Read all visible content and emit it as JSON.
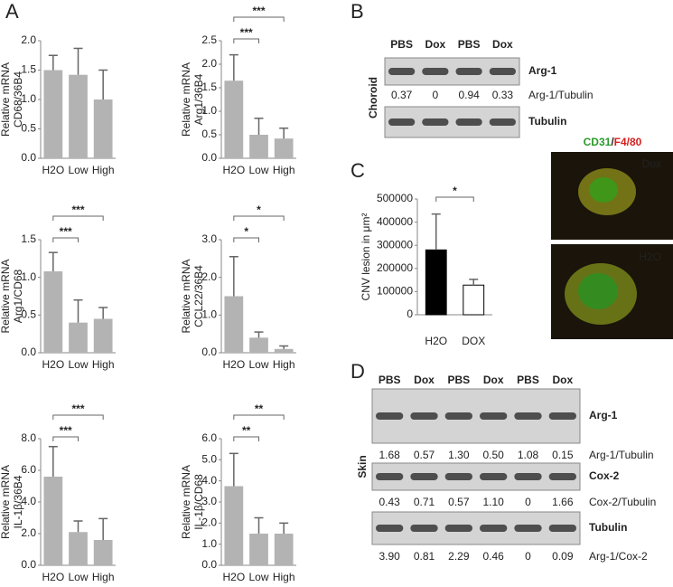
{
  "panel_labels": [
    "A",
    "B",
    "C",
    "D"
  ],
  "chart_data": [
    {
      "type": "bar",
      "ylabel": [
        "Relative mRNA",
        "CD68/36B4"
      ],
      "categories": [
        "H2O",
        "Low",
        "High"
      ],
      "values": [
        1.5,
        1.42,
        1.0
      ],
      "errors": [
        0.25,
        0.45,
        0.5
      ],
      "color": "#b3b3b3",
      "ylim": [
        0,
        2
      ],
      "yticks": [
        {
          "value": 0,
          "label": "0.0"
        },
        {
          "value": 0.5,
          "label": "0.5"
        },
        {
          "value": 1,
          "label": "1.0"
        },
        {
          "value": 1.5,
          "label": "1.5"
        },
        {
          "value": 2,
          "label": "2.0"
        }
      ],
      "annotations": []
    },
    {
      "type": "bar",
      "ylabel": [
        "Relative mRNA",
        "Arg1/36B4"
      ],
      "categories": [
        "H2O",
        "Low",
        "High"
      ],
      "values": [
        1.65,
        0.5,
        0.42
      ],
      "errors": [
        0.55,
        0.35,
        0.22
      ],
      "color": "#b3b3b3",
      "ylim": [
        0,
        2.5
      ],
      "yticks": [
        {
          "value": 0,
          "label": "0.0"
        },
        0.5,
        {
          "value": 1,
          "label": "1.0"
        },
        1.5,
        {
          "value": 2,
          "label": "2.0"
        },
        2.5
      ],
      "annotations": [
        "***",
        "***"
      ]
    },
    {
      "type": "bar",
      "ylabel": [
        "Relative mRNA",
        "Arg1/CD68"
      ],
      "categories": [
        "H2O",
        "Low",
        "High"
      ],
      "values": [
        1.08,
        0.4,
        0.45
      ],
      "errors": [
        0.25,
        0.3,
        0.15
      ],
      "color": "#b3b3b3",
      "ylim": [
        0,
        1.5
      ],
      "yticks": [
        {
          "value": 0,
          "label": "0.0"
        },
        0.5,
        {
          "value": 1,
          "label": "1.0"
        },
        1.5
      ],
      "annotations": [
        "***",
        "***"
      ]
    },
    {
      "type": "bar",
      "ylabel": [
        "Relative mRNA",
        "CCL22/36B4"
      ],
      "categories": [
        "H2O",
        "Low",
        "High"
      ],
      "values": [
        1.5,
        0.4,
        0.1
      ],
      "errors": [
        1.05,
        0.15,
        0.08
      ],
      "color": "#b3b3b3",
      "ylim": [
        0,
        3
      ],
      "yticks": [
        {
          "value": 0,
          "label": "0.0"
        },
        {
          "value": 1,
          "label": "1.0"
        },
        {
          "value": 2,
          "label": "2.0"
        },
        {
          "value": 3,
          "label": "3.0"
        }
      ],
      "annotations": [
        "*",
        "*"
      ]
    },
    {
      "type": "bar",
      "ylabel": [
        "Relative mRNA",
        "IL-1β/36B4"
      ],
      "categories": [
        "H2O",
        "Low",
        "High"
      ],
      "values": [
        5.6,
        2.1,
        1.6
      ],
      "errors": [
        1.9,
        0.7,
        1.35
      ],
      "color": "#b3b3b3",
      "ylim": [
        0,
        8
      ],
      "yticks": [
        {
          "value": 0,
          "label": "0.0"
        },
        {
          "value": 2,
          "label": "2.0"
        },
        {
          "value": 4,
          "label": "4.0"
        },
        {
          "value": 6,
          "label": "6.0"
        },
        {
          "value": 8,
          "label": "8.0"
        }
      ],
      "annotations": [
        "***",
        "***"
      ]
    },
    {
      "type": "bar",
      "ylabel": [
        "Relative mRNA",
        "IL-1β/CD68"
      ],
      "categories": [
        "H2O",
        "Low",
        "High"
      ],
      "values": [
        3.75,
        1.5,
        1.5
      ],
      "errors": [
        1.55,
        0.75,
        0.5
      ],
      "color": "#b3b3b3",
      "ylim": [
        0,
        6
      ],
      "yticks": [
        {
          "value": 0,
          "label": "0.0"
        },
        {
          "value": 1,
          "label": "1.0"
        },
        {
          "value": 2,
          "label": "2.0"
        },
        {
          "value": 3,
          "label": "3.0"
        },
        {
          "value": 4,
          "label": "4.0"
        },
        {
          "value": 5,
          "label": "5.0"
        },
        {
          "value": 6,
          "label": "6.0"
        }
      ],
      "annotations": [
        "**",
        "**"
      ]
    },
    {
      "type": "bar",
      "ylabel": [
        "CNV lesion in μm²"
      ],
      "categories": [
        "H2O",
        "DOX"
      ],
      "values": [
        280000,
        128000
      ],
      "errors": [
        155000,
        25000
      ],
      "colors": [
        "#000000",
        "#ffffff"
      ],
      "ylim": [
        0,
        500000
      ],
      "yticks": [
        0,
        100000,
        200000,
        300000,
        400000,
        500000
      ],
      "annotations": [
        "*"
      ]
    }
  ],
  "blot_B": {
    "lanes": [
      "PBS",
      "Dox",
      "PBS",
      "Dox"
    ],
    "tissue": "Choroid",
    "rows": [
      {
        "band": "Arg-1",
        "ratio_label": "Arg-1/Tubulin",
        "ratios": [
          "0.37",
          "0",
          "0.94",
          "0.33"
        ]
      },
      {
        "band": "Tubulin"
      }
    ]
  },
  "image_C": {
    "stain": [
      "CD31",
      "/",
      "F4/80"
    ],
    "labels": [
      "Dox",
      "H2O"
    ]
  },
  "blot_D": {
    "lanes": [
      "PBS",
      "Dox",
      "PBS",
      "Dox",
      "PBS",
      "Dox"
    ],
    "tissue": "Skin",
    "rows": [
      {
        "band": "Arg-1",
        "ratio_label": "Arg-1/Tubulin",
        "ratios": [
          "1.68",
          "0.57",
          "1.30",
          "0.50",
          "1.08",
          "0.15"
        ]
      },
      {
        "band": "Cox-2",
        "ratio_label": "Cox-2/Tubulin",
        "ratios": [
          "0.43",
          "0.71",
          "0.57",
          "1.10",
          "0",
          "1.66"
        ]
      },
      {
        "band": "Tubulin",
        "ratio_label": "Arg-1/Cox-2",
        "ratios": [
          "3.90",
          "0.81",
          "2.29",
          "0.46",
          "0",
          "0.09"
        ]
      }
    ]
  }
}
